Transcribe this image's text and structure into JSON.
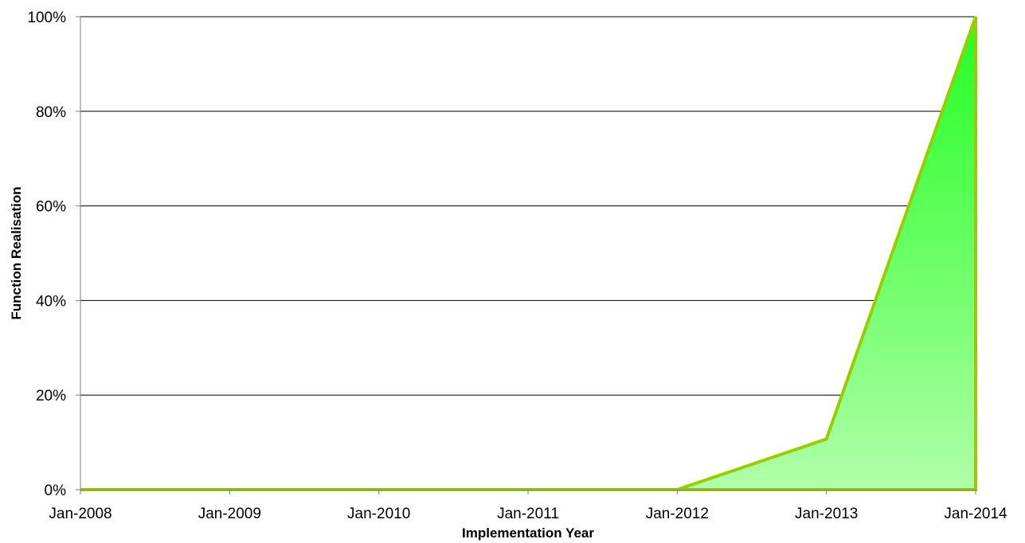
{
  "chart_data": {
    "type": "area",
    "title": "",
    "xlabel": "Implementation Year",
    "ylabel": "Function Realisation",
    "categories": [
      "Jan-2008",
      "Jan-2009",
      "Jan-2010",
      "Jan-2011",
      "Jan-2012",
      "Jan-2013",
      "Jan-2014"
    ],
    "series": [
      {
        "values": [
          0,
          0,
          0,
          0,
          0,
          0.107,
          1.0
        ]
      }
    ],
    "ylim": [
      0,
      1
    ],
    "yticks": [
      0,
      0.2,
      0.4,
      0.6,
      0.8,
      1.0
    ],
    "ytick_labels": [
      "0%",
      "20%",
      "40%",
      "60%",
      "80%",
      "100%"
    ],
    "grid": "horizontal",
    "legend": "none",
    "colors": {
      "line": "#99cc00",
      "fill_top": "#22ff22",
      "fill_bottom": "#b0ffa8",
      "gridline": "#000000",
      "axis": "#808080"
    }
  }
}
